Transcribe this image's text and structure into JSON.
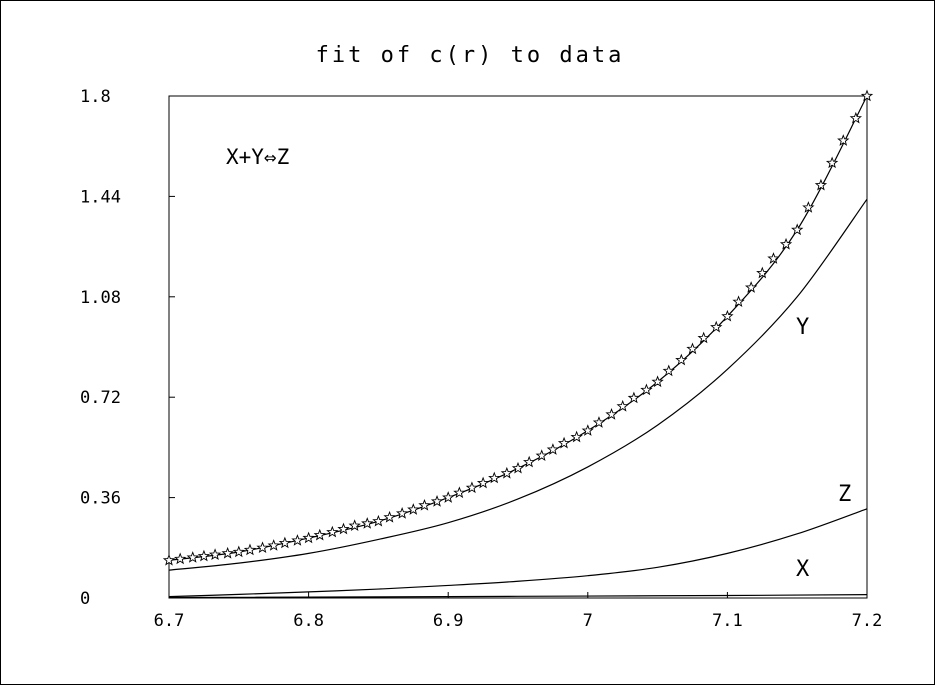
{
  "chart_data": {
    "type": "line",
    "title": "fit of c(r) to data",
    "xlabel": "",
    "ylabel": "",
    "xlim": [
      6.7,
      7.2
    ],
    "ylim": [
      0,
      1.8
    ],
    "x_ticks": [
      "6.7",
      "6.8",
      "6.9",
      "7",
      "7.1",
      "7.2"
    ],
    "y_ticks": [
      "0",
      "0.36",
      "0.72",
      "1.08",
      "1.44",
      "1.8"
    ],
    "annotation": "X+Y⇔Z",
    "grid": false,
    "series": [
      {
        "kind": "curve",
        "label": "",
        "x": [
          6.7,
          6.75,
          6.8,
          6.85,
          6.9,
          6.95,
          7.0,
          7.05,
          7.1,
          7.15,
          7.2
        ],
        "y": [
          0.135,
          0.165,
          0.215,
          0.275,
          0.36,
          0.465,
          0.6,
          0.775,
          1.01,
          1.32,
          1.8
        ]
      },
      {
        "kind": "points",
        "label": "",
        "marker": "star",
        "x": [
          6.7,
          6.708,
          6.717,
          6.725,
          6.733,
          6.742,
          6.75,
          6.758,
          6.767,
          6.775,
          6.783,
          6.792,
          6.8,
          6.808,
          6.817,
          6.825,
          6.833,
          6.842,
          6.85,
          6.858,
          6.867,
          6.875,
          6.883,
          6.892,
          6.9,
          6.908,
          6.917,
          6.925,
          6.933,
          6.942,
          6.95,
          6.958,
          6.967,
          6.975,
          6.983,
          6.992,
          7.0,
          7.008,
          7.017,
          7.025,
          7.033,
          7.042,
          7.05,
          7.058,
          7.067,
          7.075,
          7.083,
          7.092,
          7.1,
          7.108,
          7.117,
          7.125,
          7.133,
          7.142,
          7.15,
          7.158,
          7.167,
          7.175,
          7.183,
          7.192,
          7.2
        ],
        "y": [
          0.135,
          0.14,
          0.145,
          0.15,
          0.155,
          0.16,
          0.165,
          0.172,
          0.18,
          0.188,
          0.197,
          0.206,
          0.215,
          0.225,
          0.236,
          0.247,
          0.259,
          0.267,
          0.275,
          0.289,
          0.303,
          0.317,
          0.332,
          0.346,
          0.36,
          0.377,
          0.395,
          0.412,
          0.43,
          0.447,
          0.465,
          0.487,
          0.51,
          0.532,
          0.555,
          0.577,
          0.6,
          0.629,
          0.658,
          0.687,
          0.717,
          0.746,
          0.775,
          0.814,
          0.853,
          0.893,
          0.932,
          0.971,
          1.01,
          1.062,
          1.113,
          1.165,
          1.217,
          1.268,
          1.32,
          1.4,
          1.48,
          1.56,
          1.64,
          1.72,
          1.8
        ]
      },
      {
        "kind": "curve",
        "label": "Y",
        "x": [
          6.7,
          6.75,
          6.8,
          6.85,
          6.9,
          6.95,
          7.0,
          7.05,
          7.1,
          7.15,
          7.2
        ],
        "y": [
          0.1,
          0.125,
          0.16,
          0.21,
          0.27,
          0.355,
          0.47,
          0.62,
          0.82,
          1.08,
          1.43
        ]
      },
      {
        "kind": "curve",
        "label": "Z",
        "x": [
          6.7,
          6.75,
          6.8,
          6.85,
          6.9,
          6.95,
          7.0,
          7.05,
          7.1,
          7.15,
          7.2
        ],
        "y": [
          0.005,
          0.013,
          0.022,
          0.032,
          0.045,
          0.06,
          0.08,
          0.11,
          0.16,
          0.23,
          0.32
        ]
      },
      {
        "kind": "curve",
        "label": "X",
        "x": [
          6.7,
          6.8,
          6.9,
          7.0,
          7.1,
          7.2
        ],
        "y": [
          0.002,
          0.003,
          0.005,
          0.007,
          0.009,
          0.012
        ]
      }
    ]
  }
}
